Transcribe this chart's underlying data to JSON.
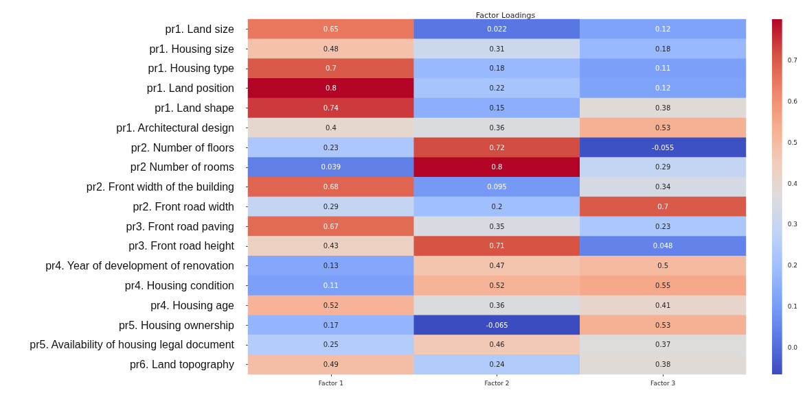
{
  "chart_data": {
    "type": "heatmap",
    "title": "Factor Loadings",
    "categories": [
      "Factor 1",
      "Factor 2",
      "Factor 3"
    ],
    "y_categories": [
      "pr1. Land size",
      "pr1. Housing size",
      "pr1. Housing type",
      "pr1. Land position",
      "pr1. Land shape",
      "pr1. Architectural design",
      "pr2. Number of floors",
      "pr2 Number of rooms",
      "pr2. Front width of the building",
      "pr2. Front road width",
      "pr3. Front road paving",
      "pr3. Front road height",
      "pr4. Year of development of renovation",
      "pr4. Housing condition",
      "pr4. Housing age",
      "pr5. Housing ownership",
      "pr5. Availability of housing legal document",
      "pr6. Land topography"
    ],
    "cells": [
      [
        0.65,
        0.022,
        0.12
      ],
      [
        0.48,
        0.31,
        0.18
      ],
      [
        0.7,
        0.18,
        0.11
      ],
      [
        0.8,
        0.22,
        0.12
      ],
      [
        0.74,
        0.15,
        0.38
      ],
      [
        0.4,
        0.36,
        0.53
      ],
      [
        0.23,
        0.72,
        -0.055
      ],
      [
        0.039,
        0.8,
        0.29
      ],
      [
        0.68,
        0.095,
        0.34
      ],
      [
        0.29,
        0.2,
        0.7
      ],
      [
        0.67,
        0.35,
        0.23
      ],
      [
        0.43,
        0.71,
        0.048
      ],
      [
        0.13,
        0.47,
        0.5
      ],
      [
        0.11,
        0.52,
        0.55
      ],
      [
        0.52,
        0.36,
        0.41
      ],
      [
        0.17,
        -0.065,
        0.53
      ],
      [
        0.25,
        0.46,
        0.37
      ],
      [
        0.49,
        0.24,
        0.38
      ]
    ],
    "data_labels": true,
    "clim": [
      -0.065,
      0.8
    ],
    "cticks": [
      {
        "value": 0,
        "label": "0.0"
      },
      0.1,
      0.2,
      0.3,
      0.4,
      0.5,
      0.6,
      0.7
    ]
  }
}
